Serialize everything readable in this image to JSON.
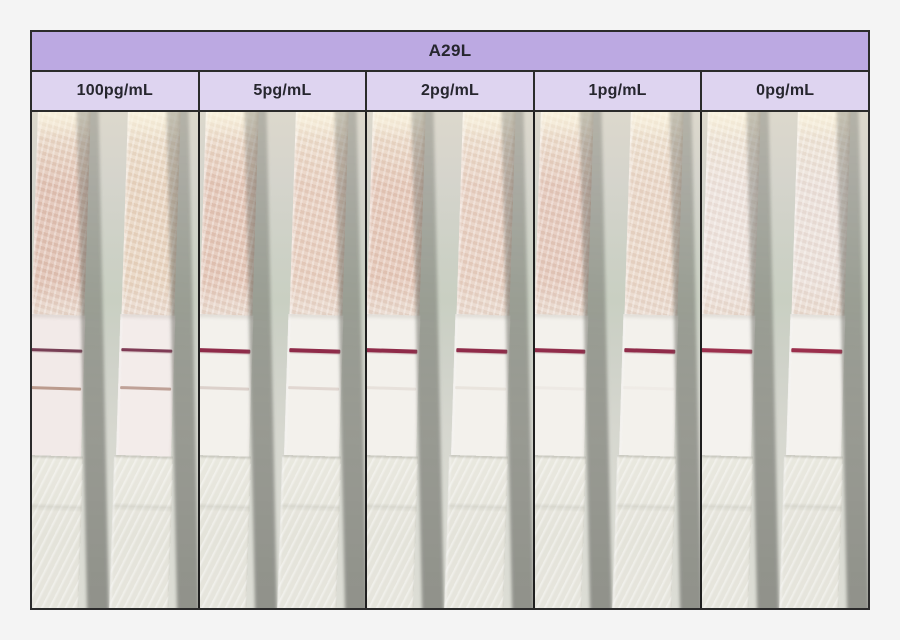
{
  "figure": {
    "title": "A29L",
    "columns": [
      {
        "label": "100pg/mL",
        "result": "control and test lines visible",
        "strips": [
          {
            "pad_tint": "#dfbfb0",
            "membrane_tint": "#f2eae8",
            "control_color": "#6e3149",
            "control_opacity": 0.92,
            "control_height": 3,
            "test_color": "#b28d7c",
            "test_opacity": 0.85,
            "test_height": 3
          },
          {
            "pad_tint": "#e7d2bd",
            "membrane_tint": "#f3ecea",
            "control_color": "#78304c",
            "control_opacity": 0.94,
            "control_height": 3,
            "test_color": "#b18f82",
            "test_opacity": 0.8,
            "test_height": 3
          }
        ]
      },
      {
        "label": "5pg/mL",
        "result": "strong control line, very faint test line",
        "strips": [
          {
            "pad_tint": "#e2c3b3",
            "membrane_tint": "#f3f1ec",
            "control_color": "#8f2b49",
            "control_opacity": 1,
            "control_height": 4,
            "test_color": "#ac9085",
            "test_opacity": 0.32,
            "test_height": 3
          },
          {
            "pad_tint": "#e6ccbc",
            "membrane_tint": "#f3f1ec",
            "control_color": "#8f2b49",
            "control_opacity": 1,
            "control_height": 4,
            "test_color": "#ac9085",
            "test_opacity": 0.26,
            "test_height": 3
          }
        ]
      },
      {
        "label": "2pg/mL",
        "result": "strong control line, barely visible test line",
        "strips": [
          {
            "pad_tint": "#e3c5b5",
            "membrane_tint": "#f3f1ec",
            "control_color": "#8f2b49",
            "control_opacity": 1,
            "control_height": 4,
            "test_color": "#b29a90",
            "test_opacity": 0.18,
            "test_height": 3
          },
          {
            "pad_tint": "#e6cdbe",
            "membrane_tint": "#f3f1ec",
            "control_color": "#8f2b49",
            "control_opacity": 1,
            "control_height": 4,
            "test_color": "#b29a90",
            "test_opacity": 0.15,
            "test_height": 3
          }
        ]
      },
      {
        "label": "1pg/mL",
        "result": "control line only",
        "strips": [
          {
            "pad_tint": "#e3c6b8",
            "membrane_tint": "#f3f1ec",
            "control_color": "#902c4a",
            "control_opacity": 1,
            "control_height": 4,
            "test_color": "#bfaaa0",
            "test_opacity": 0.1,
            "test_height": 3
          },
          {
            "pad_tint": "#e8d4c4",
            "membrane_tint": "#f3f1ec",
            "control_color": "#902c4a",
            "control_opacity": 1,
            "control_height": 4,
            "test_color": "#bfaaa0",
            "test_opacity": 0.08,
            "test_height": 3
          }
        ]
      },
      {
        "label": "0pg/mL",
        "result": "control line only",
        "strips": [
          {
            "pad_tint": "#ece1da",
            "membrane_tint": "#f4f2ee",
            "control_color": "#9b2f4c",
            "control_opacity": 1,
            "control_height": 4,
            "test_color": "#c8b5ab",
            "test_opacity": 0,
            "test_height": 3
          },
          {
            "pad_tint": "#eadfd8",
            "membrane_tint": "#f4f2ee",
            "control_color": "#9b2f4c",
            "control_opacity": 1,
            "control_height": 4,
            "test_color": "#c8b5ab",
            "test_opacity": 0,
            "test_height": 3
          }
        ]
      }
    ]
  },
  "colors": {
    "page_bg": "#f4f4f4",
    "header_bg": "#bca9e2",
    "subheader_bg": "#ded4f0",
    "border": "#2b2b2b",
    "header_text": "#26262e",
    "control_line": "#8f2b49",
    "photo_bg": "#d0d3c9"
  }
}
